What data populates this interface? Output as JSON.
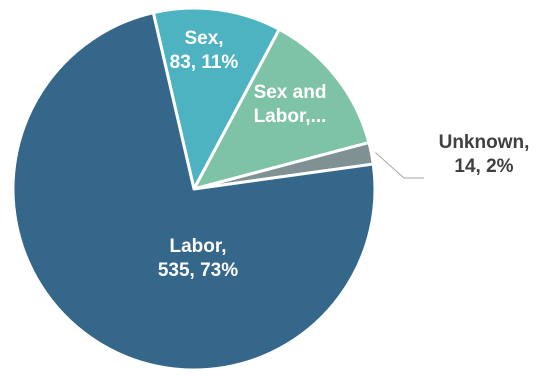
{
  "chart_data": {
    "type": "pie",
    "title": "",
    "series": [
      {
        "values": [
          535,
          83,
          95,
          14
        ],
        "categories": [
          "Labor",
          "Sex",
          "Sex and Labor",
          "Unknown"
        ]
      }
    ],
    "slices": [
      {
        "category": "Labor",
        "value": 535,
        "percent": 73,
        "color": "#35678b",
        "label_lines": [
          "Labor,",
          "535, 73%"
        ]
      },
      {
        "category": "Sex",
        "value": 83,
        "percent": 11,
        "color": "#4eb3c1",
        "label_lines": [
          "Sex,",
          "83, 11%"
        ]
      },
      {
        "category": "Sex and Labor",
        "value": 95,
        "percent": 13,
        "color": "#7fc3a6",
        "label_lines": [
          "Sex and",
          "Labor,..."
        ]
      },
      {
        "category": "Unknown",
        "value": 14,
        "percent": 2,
        "color": "#7f9193",
        "label_lines": [
          "Unknown,",
          "14, 2%"
        ]
      }
    ],
    "start_angle_deg": 73,
    "legend": "none",
    "label_color_inside": "#ffffff",
    "label_color_outside": "#404040"
  }
}
